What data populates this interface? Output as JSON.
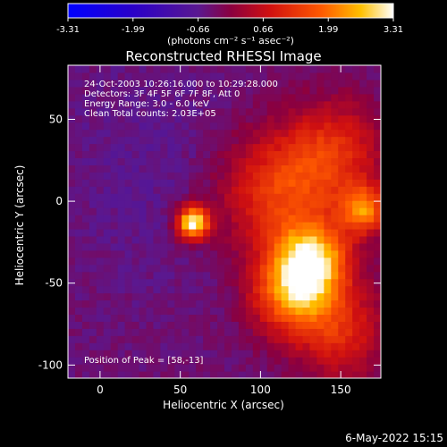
{
  "colorbar": {
    "ticks": [
      "-3.31",
      "-1.99",
      "-0.66",
      "0.66",
      "1.99",
      "3.31"
    ],
    "unit_label": "(photons cm⁻² s⁻¹ asec⁻²)",
    "range": [
      -3.31,
      3.31
    ]
  },
  "footer": {
    "date": "6-May-2022 15:15"
  },
  "chart_data": {
    "type": "heatmap",
    "title": "Reconstructed RHESSI Image",
    "xlabel": "Heliocentric X (arcsec)",
    "ylabel": "Heliocentric Y (arcsec)",
    "xlim": [
      -20,
      175
    ],
    "ylim": [
      -108,
      83
    ],
    "x_ticks": [
      0,
      50,
      100,
      150
    ],
    "y_ticks": [
      -100,
      -50,
      0,
      50
    ],
    "annotations": [
      "24-Oct-2003 10:26:16.000 to 10:29:28.000",
      "Detectors: 3F 4F 5F 6F 7F 8F, Att 0",
      "Energy Range: 3.0 - 6.0 keV",
      "Clean     Total counts: 2.03E+05"
    ],
    "peak_note": "Position of Peak = [58,-13]",
    "peak_position": [
      58,
      -13
    ],
    "colormap": "blue-purple-red-yellow-white (IDL color table 3 like)",
    "sources": [
      {
        "x": 58,
        "y": -13,
        "sigma": 7,
        "value": 3.31
      },
      {
        "x": 133,
        "y": -35,
        "sigma": 16,
        "value": 2.2
      },
      {
        "x": 120,
        "y": -55,
        "sigma": 18,
        "value": 2.0
      },
      {
        "x": 165,
        "y": -5,
        "sigma": 10,
        "value": 1.8
      },
      {
        "x": 110,
        "y": 5,
        "sigma": 25,
        "value": 1.2
      },
      {
        "x": 145,
        "y": 30,
        "sigma": 22,
        "value": 1.0
      },
      {
        "x": 150,
        "y": -80,
        "sigma": 20,
        "value": 0.9
      }
    ]
  }
}
